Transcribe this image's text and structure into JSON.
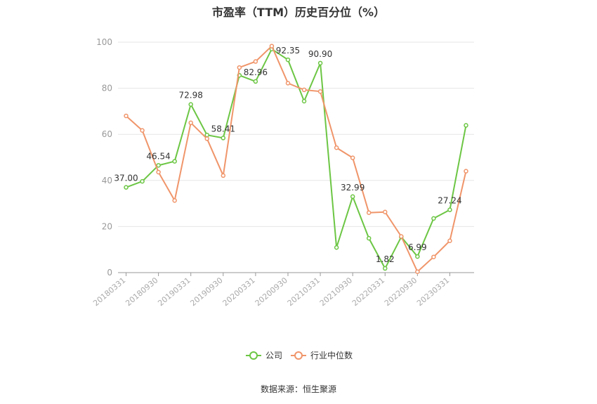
{
  "title": "市盈率（TTM）历史百分位（%）",
  "source": "数据来源：恒生聚源",
  "chart_data": {
    "type": "line",
    "title": "市盈率（TTM）历史百分位（%）",
    "categories": [
      "20180331",
      "20180630",
      "20180930",
      "20181231",
      "20190331",
      "20190630",
      "20190930",
      "20191231",
      "20200331",
      "20200630",
      "20200930",
      "20201231",
      "20210331",
      "20210630",
      "20210930",
      "20211231",
      "20220331",
      "20220630",
      "20220930",
      "20221231",
      "20230331",
      "20230630"
    ],
    "tick_labels": [
      "20180331",
      "20180930",
      "20190331",
      "20190930",
      "20200331",
      "20200930",
      "20210331",
      "20210930",
      "20220331",
      "20220930",
      "20230331"
    ],
    "ylim": [
      0,
      100
    ],
    "yticks": [
      0,
      20,
      40,
      60,
      80,
      100
    ],
    "grid": true,
    "legend_position": "bottom",
    "series": [
      {
        "name": "公司",
        "color": "#6cc644",
        "values": [
          37.0,
          39.6,
          46.54,
          48.3,
          72.98,
          59.7,
          58.41,
          85.6,
          82.96,
          97.0,
          92.35,
          74.4,
          90.9,
          10.9,
          32.99,
          14.9,
          1.82,
          15.5,
          6.99,
          23.5,
          27.24,
          63.9
        ],
        "labels": {
          "0": "37.00",
          "2": "46.54",
          "4": "72.98",
          "6": "58.41",
          "8": "82.96",
          "10": "92.35",
          "12": "90.90",
          "14": "32.99",
          "16": "1.82",
          "18": "6.99",
          "20": "27.24"
        }
      },
      {
        "name": "行业中位数",
        "color": "#f0956a",
        "values": [
          68.0,
          61.7,
          43.6,
          31.3,
          65.0,
          58.1,
          42.1,
          89.0,
          91.6,
          98.3,
          82.2,
          79.3,
          78.6,
          54.2,
          49.8,
          26.0,
          26.3,
          15.7,
          0.4,
          6.8,
          13.8,
          44.0
        ]
      }
    ]
  }
}
